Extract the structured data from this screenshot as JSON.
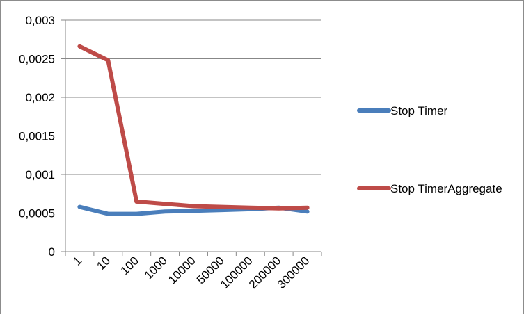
{
  "chart_data": {
    "type": "line",
    "categories": [
      "1",
      "10",
      "100",
      "1000",
      "10000",
      "50000",
      "100000",
      "200000",
      "300000"
    ],
    "series": [
      {
        "name": "Stop Timer",
        "color": "#4a7ebb",
        "values": [
          0.00058,
          0.00049,
          0.00049,
          0.00052,
          0.00053,
          0.00054,
          0.00055,
          0.00057,
          0.00052
        ]
      },
      {
        "name": "Stop TimerAggregate",
        "color": "#be4b48",
        "values": [
          0.00266,
          0.00248,
          0.00065,
          0.00062,
          0.00059,
          0.00058,
          0.00057,
          0.00056,
          0.00057
        ]
      }
    ],
    "y_ticks": [
      "0",
      "0,0005",
      "0,001",
      "0,0015",
      "0,002",
      "0,0025",
      "0,003"
    ],
    "ylim": [
      0,
      0.003
    ],
    "grid": true,
    "legend": "right"
  }
}
